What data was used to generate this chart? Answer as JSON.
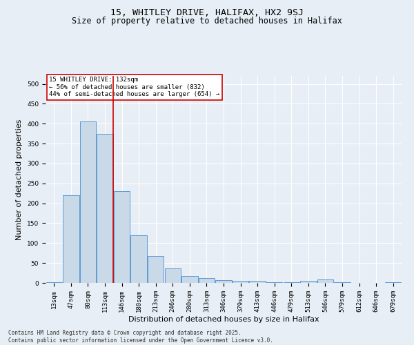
{
  "title_line1": "15, WHITLEY DRIVE, HALIFAX, HX2 9SJ",
  "title_line2": "Size of property relative to detached houses in Halifax",
  "xlabel": "Distribution of detached houses by size in Halifax",
  "ylabel": "Number of detached properties",
  "categories": [
    "13sqm",
    "47sqm",
    "80sqm",
    "113sqm",
    "146sqm",
    "180sqm",
    "213sqm",
    "246sqm",
    "280sqm",
    "313sqm",
    "346sqm",
    "379sqm",
    "413sqm",
    "446sqm",
    "479sqm",
    "513sqm",
    "546sqm",
    "579sqm",
    "612sqm",
    "646sqm",
    "679sqm"
  ],
  "values": [
    2,
    220,
    405,
    375,
    230,
    120,
    68,
    37,
    18,
    13,
    7,
    5,
    6,
    1,
    1,
    6,
    8,
    1,
    0,
    0,
    1
  ],
  "bar_color": "#c9d9e8",
  "bar_edge_color": "#5b9bd5",
  "vline_x_index": 3,
  "vline_color": "#cc0000",
  "annotation_text": "15 WHITLEY DRIVE: 132sqm\n← 56% of detached houses are smaller (832)\n44% of semi-detached houses are larger (654) →",
  "annotation_box_color": "#ffffff",
  "annotation_box_edge_color": "#cc0000",
  "ylim": [
    0,
    520
  ],
  "yticks": [
    0,
    50,
    100,
    150,
    200,
    250,
    300,
    350,
    400,
    450,
    500
  ],
  "background_color": "#e8eef5",
  "footer_text": "Contains HM Land Registry data © Crown copyright and database right 2025.\nContains public sector information licensed under the Open Government Licence v3.0.",
  "grid_color": "#ffffff",
  "title_fontsize": 9.5,
  "subtitle_fontsize": 8.5,
  "tick_fontsize": 6.5,
  "label_fontsize": 8,
  "annotation_fontsize": 6.5,
  "footer_fontsize": 5.5
}
